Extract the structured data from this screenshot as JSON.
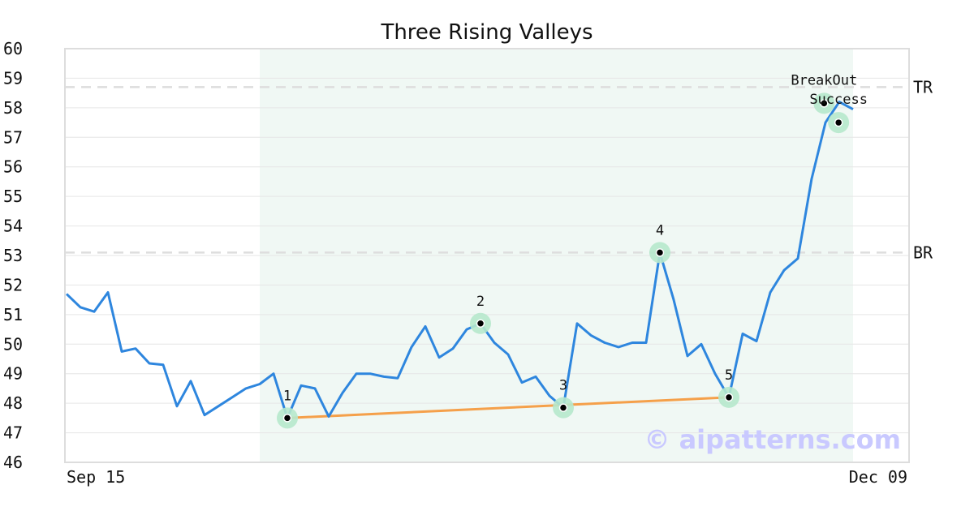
{
  "chart_data": {
    "type": "line",
    "title": "Three Rising Valleys",
    "x_tick_labels": [
      "Sep 15",
      "Dec 09"
    ],
    "ylim": [
      46,
      60
    ],
    "y_ticks": [
      46,
      47,
      48,
      49,
      50,
      51,
      52,
      53,
      54,
      55,
      56,
      57,
      58,
      59,
      60
    ],
    "grid": "horizontal",
    "series": [
      {
        "color": "#2e86de",
        "values": [
          51.7,
          51.25,
          51.1,
          51.75,
          49.75,
          49.85,
          49.35,
          49.3,
          47.9,
          48.75,
          47.6,
          47.9,
          48.2,
          48.5,
          48.65,
          49.0,
          47.5,
          48.6,
          48.5,
          47.55,
          48.35,
          49.0,
          49.0,
          48.9,
          48.85,
          49.9,
          50.6,
          49.55,
          49.85,
          50.5,
          50.7,
          50.05,
          49.65,
          48.7,
          48.9,
          48.25,
          47.85,
          50.7,
          50.3,
          50.05,
          49.9,
          50.05,
          50.05,
          53.1,
          51.5,
          49.6,
          50.0,
          49.0,
          48.2,
          50.35,
          50.1,
          51.75,
          52.5,
          52.9,
          55.6,
          57.5,
          58.2,
          57.95
        ]
      }
    ],
    "pattern_region": {
      "start_index": 14,
      "end_index": 57,
      "color": "#f0f8f4"
    },
    "levels": [
      {
        "label": "TR",
        "value": 58.7
      },
      {
        "label": "BR",
        "value": 53.1
      }
    ],
    "trendline": {
      "color": "#f5a04a",
      "from": {
        "index": 16,
        "value": 47.5
      },
      "to": {
        "index": 48,
        "value": 48.2
      }
    },
    "marked_points": [
      {
        "label": "1",
        "index": 16,
        "value": 47.5
      },
      {
        "label": "2",
        "index": 30,
        "value": 50.7
      },
      {
        "label": "3",
        "index": 36,
        "value": 47.85
      },
      {
        "label": "4",
        "index": 43,
        "value": 53.1
      },
      {
        "label": "5",
        "index": 48,
        "value": 48.2
      },
      {
        "label": "BreakOut",
        "index": 54.9,
        "value": 58.15
      },
      {
        "label": "Success",
        "index": 55.95,
        "value": 57.5
      }
    ],
    "watermark": "© aipatterns.com"
  }
}
